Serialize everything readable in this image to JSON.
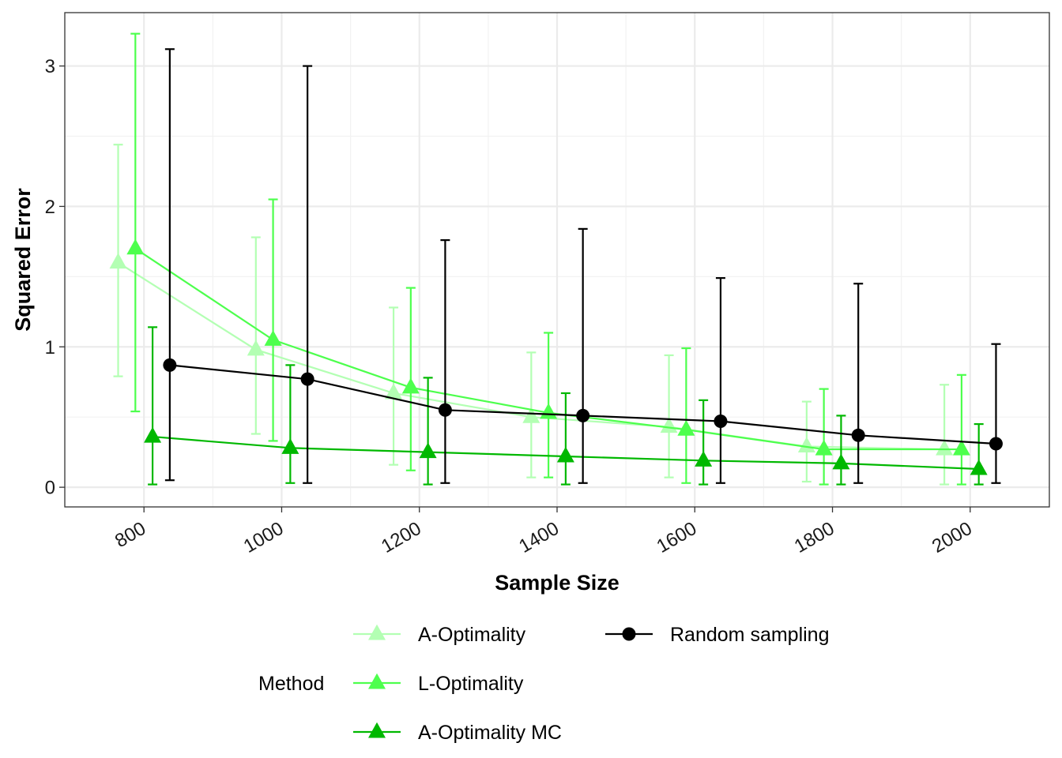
{
  "chart_data": {
    "type": "line",
    "title": "",
    "xlabel": "Sample Size",
    "ylabel": "Squared Error",
    "xlim": [
      685,
      2115
    ],
    "ylim": [
      -0.14,
      3.38
    ],
    "x_ticks": [
      800,
      1000,
      1200,
      1400,
      1600,
      1800,
      2000
    ],
    "x_tick_labels": [
      "800",
      "1000",
      "1200",
      "1400",
      "1600",
      "1800",
      "2000"
    ],
    "y_ticks": [
      0,
      1,
      2,
      3
    ],
    "y_tick_labels": [
      "0",
      "1",
      "2",
      "3"
    ],
    "x_tick_rotation": 30,
    "grid": true,
    "legend_title": "Method",
    "legend_position": "bottom",
    "x": [
      800,
      1000,
      1200,
      1400,
      1600,
      1800,
      2000
    ],
    "series": [
      {
        "name": "A-Optimality",
        "color": "#b3ffb3",
        "marker": "triangle",
        "dodge": -37.5,
        "values": [
          1.6,
          0.98,
          0.67,
          0.5,
          0.43,
          0.29,
          0.27
        ],
        "lower": [
          0.79,
          0.38,
          0.16,
          0.07,
          0.07,
          0.04,
          0.02
        ],
        "upper": [
          2.44,
          1.78,
          1.28,
          0.96,
          0.94,
          0.61,
          0.73
        ]
      },
      {
        "name": "L-Optimality",
        "color": "#4dff4d",
        "marker": "triangle",
        "dodge": -12.5,
        "values": [
          1.7,
          1.05,
          0.71,
          0.53,
          0.41,
          0.27,
          0.27
        ],
        "lower": [
          0.54,
          0.33,
          0.12,
          0.07,
          0.03,
          0.02,
          0.02
        ],
        "upper": [
          3.23,
          2.05,
          1.42,
          1.1,
          0.99,
          0.7,
          0.8
        ]
      },
      {
        "name": "A-Optimality MC",
        "color": "#00b800",
        "marker": "triangle",
        "dodge": 12.5,
        "values": [
          0.36,
          0.28,
          0.25,
          0.22,
          0.19,
          0.17,
          0.13
        ],
        "lower": [
          0.02,
          0.03,
          0.02,
          0.02,
          0.02,
          0.02,
          0.02
        ],
        "upper": [
          1.14,
          0.87,
          0.78,
          0.67,
          0.62,
          0.51,
          0.45
        ]
      },
      {
        "name": "Random sampling",
        "color": "#000000",
        "marker": "circle",
        "dodge": 37.5,
        "values": [
          0.87,
          0.77,
          0.55,
          0.51,
          0.47,
          0.37,
          0.31
        ],
        "lower": [
          0.05,
          0.03,
          0.03,
          0.03,
          0.03,
          0.03,
          0.03
        ],
        "upper": [
          3.12,
          3.0,
          1.76,
          1.84,
          1.49,
          1.45,
          1.02
        ]
      }
    ]
  }
}
